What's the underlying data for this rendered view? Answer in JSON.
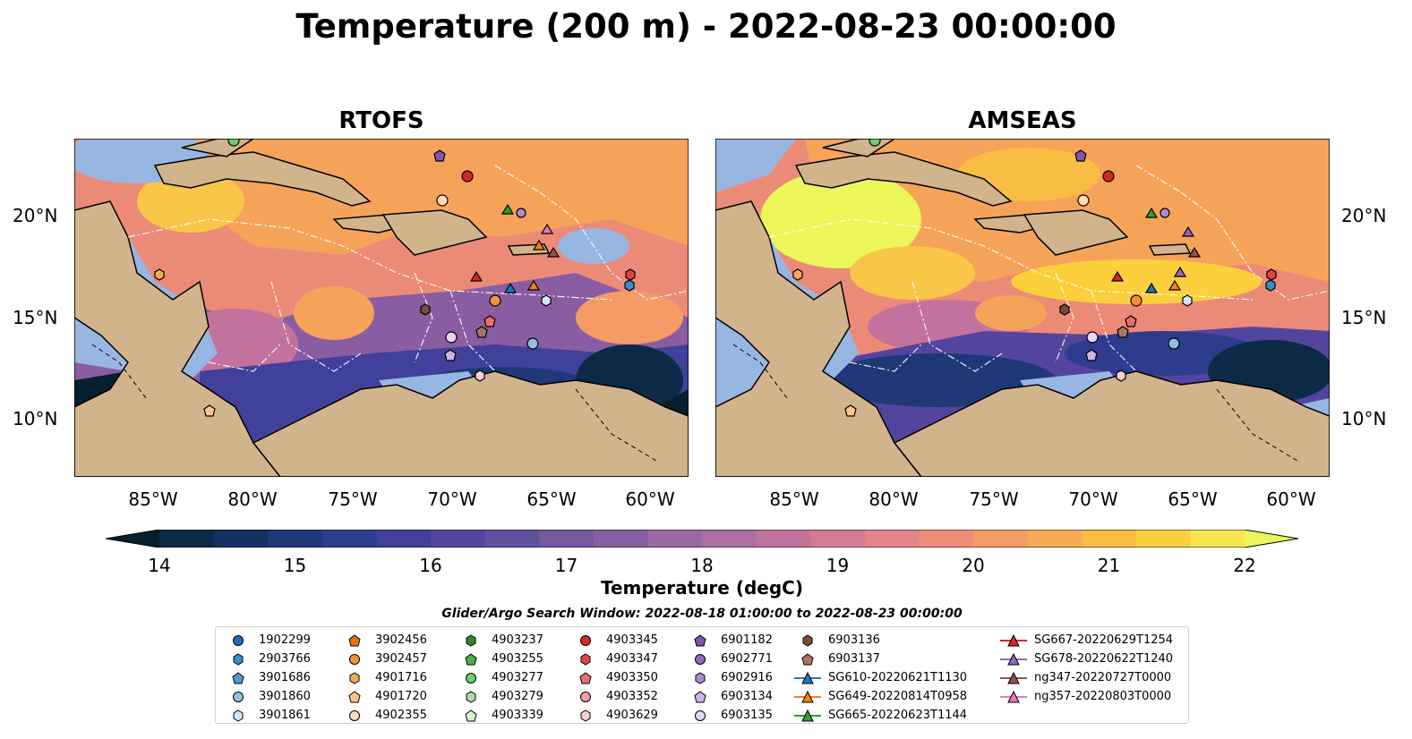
{
  "title": "Temperature (200 m) - 2022-08-23 00:00:00",
  "panels": [
    {
      "title": "RTOFS"
    },
    {
      "title": "AMSEAS"
    }
  ],
  "lat_labels": [
    "20°N",
    "15°N",
    "10°N"
  ],
  "lon_labels": [
    "85°W",
    "80°W",
    "75°W",
    "70°W",
    "65°W",
    "60°W"
  ],
  "colorbar": {
    "label": "Temperature (degC)",
    "ticks": [
      "14",
      "15",
      "16",
      "17",
      "18",
      "19",
      "20",
      "21",
      "22"
    ],
    "min": 14,
    "max": 22,
    "colors": [
      "#06202e",
      "#0c2a46",
      "#162f63",
      "#203878",
      "#2e3c8e",
      "#41409a",
      "#53459d",
      "#62509f",
      "#7459a1",
      "#8560a2",
      "#9a68a3",
      "#ad6ea1",
      "#c2729c",
      "#d47a94",
      "#e3838a",
      "#ef8d79",
      "#f59b67",
      "#f7ab55",
      "#f9bd44",
      "#fbd03c",
      "#f8e64f",
      "#eaf659"
    ]
  },
  "search_window": "Glider/Argo Search Window: 2022-08-18 01:00:00 to 2022-08-23 00:00:00",
  "legend": {
    "columns": [
      [
        {
          "label": "1902299",
          "marker": "circle",
          "color": "#1f6fb4"
        },
        {
          "label": "2903766",
          "marker": "hexagon",
          "color": "#3b8dcb"
        },
        {
          "label": "3901686",
          "marker": "pentagon",
          "color": "#4e9cd4"
        },
        {
          "label": "3901860",
          "marker": "circle",
          "color": "#8fc0e3"
        },
        {
          "label": "3901861",
          "marker": "hexagon",
          "color": "#d1e7f6"
        }
      ],
      [
        {
          "label": "3902456",
          "marker": "pentagon",
          "color": "#e67211"
        },
        {
          "label": "3902457",
          "marker": "circle",
          "color": "#f6913a"
        },
        {
          "label": "4901716",
          "marker": "hexagon",
          "color": "#f8a95b"
        },
        {
          "label": "4901720",
          "marker": "pentagon",
          "color": "#fcc489"
        },
        {
          "label": "4902355",
          "marker": "circle",
          "color": "#fddbb6"
        }
      ],
      [
        {
          "label": "4903237",
          "marker": "hexagon",
          "color": "#2a8b2a"
        },
        {
          "label": "4903255",
          "marker": "pentagon",
          "color": "#48b048"
        },
        {
          "label": "4903277",
          "marker": "circle",
          "color": "#6fcc6f"
        },
        {
          "label": "4903279",
          "marker": "hexagon",
          "color": "#a8e2a0"
        },
        {
          "label": "4903339",
          "marker": "pentagon",
          "color": "#d6f2cf"
        }
      ],
      [
        {
          "label": "4903345",
          "marker": "circle",
          "color": "#d62728"
        },
        {
          "label": "4903347",
          "marker": "hexagon",
          "color": "#e04545"
        },
        {
          "label": "4903350",
          "marker": "pentagon",
          "color": "#ee6e6e"
        },
        {
          "label": "4903352",
          "marker": "circle",
          "color": "#f59c9c"
        },
        {
          "label": "4903629",
          "marker": "hexagon",
          "color": "#fbd0d0"
        }
      ],
      [
        {
          "label": "6901182",
          "marker": "pentagon",
          "color": "#7d55b0"
        },
        {
          "label": "6902771",
          "marker": "circle",
          "color": "#9467bd"
        },
        {
          "label": "6902916",
          "marker": "hexagon",
          "color": "#ad8bd1"
        },
        {
          "label": "6903134",
          "marker": "pentagon",
          "color": "#cbb4e6"
        },
        {
          "label": "6903135",
          "marker": "circle",
          "color": "#e4d6f5"
        }
      ],
      [
        {
          "label": "6903136",
          "marker": "hexagon",
          "color": "#7a4b3a"
        },
        {
          "label": "6903137",
          "marker": "pentagon",
          "color": "#a87564"
        },
        {
          "label": "SG610-20220621T1130",
          "marker": "triangle",
          "color": "#1f77b4",
          "line": true
        },
        {
          "label": "SG649-20220814T0958",
          "marker": "triangle",
          "color": "#ff7f0e",
          "line": true
        },
        {
          "label": "SG665-20220623T1144",
          "marker": "triangle",
          "color": "#2ca02c",
          "line": true
        }
      ],
      [
        {
          "label": "SG667-20220629T1254",
          "marker": "triangle",
          "color": "#d62728",
          "line": true
        },
        {
          "label": "SG678-20220622T1240",
          "marker": "triangle",
          "color": "#9467bd",
          "line": true
        },
        {
          "label": "ng347-20220727T0000",
          "marker": "triangle",
          "color": "#8c564b",
          "line": true
        },
        {
          "label": "ng357-20220803T0000",
          "marker": "triangle",
          "color": "#e377c2",
          "line": true
        }
      ]
    ]
  },
  "colors": {
    "land": "#d2b48c",
    "shelf": "#98b6e2",
    "coast": "#000000",
    "eez": "#ffffff"
  }
}
